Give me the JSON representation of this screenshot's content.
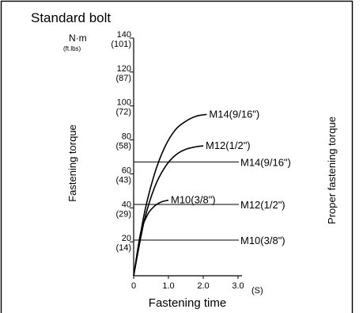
{
  "chart_data": {
    "type": "line",
    "title": "Standard bolt",
    "ylabel": "Fastening torque",
    "ylabel_right": "Proper fastening torque",
    "xlabel": "Fastening time",
    "x_unit": "(S)",
    "y_unit": "N·m",
    "y_unit_alt": "(ft.lbs)",
    "xlim": [
      0,
      3
    ],
    "ylim": [
      0,
      140
    ],
    "x_ticks": [
      {
        "value": 0,
        "label": "0"
      },
      {
        "value": 1,
        "label": "1.0"
      },
      {
        "value": 2,
        "label": "2.0"
      },
      {
        "value": 3,
        "label": "3.0"
      }
    ],
    "y_ticks": [
      {
        "value": 20,
        "label": "20",
        "alt": "(14)"
      },
      {
        "value": 40,
        "label": "40",
        "alt": "(29)"
      },
      {
        "value": 60,
        "label": "60",
        "alt": "(43)"
      },
      {
        "value": 80,
        "label": "80",
        "alt": "(58)"
      },
      {
        "value": 100,
        "label": "100",
        "alt": "(72)"
      },
      {
        "value": 120,
        "label": "120",
        "alt": "(87)"
      },
      {
        "value": 140,
        "label": "140",
        "alt": "(101)"
      }
    ],
    "series": [
      {
        "name": "M14(9/16\")",
        "x": [
          0,
          0.3,
          0.6,
          0.9,
          1.2,
          1.5,
          1.8,
          2.1
        ],
        "y": [
          0,
          36,
          60,
          76,
          86,
          91,
          94,
          95
        ]
      },
      {
        "name": "M12(1/2\")",
        "x": [
          0,
          0.3,
          0.6,
          0.9,
          1.2,
          1.5,
          1.8,
          2.0
        ],
        "y": [
          0,
          32,
          52,
          64,
          71,
          74.5,
          76,
          76.5
        ]
      },
      {
        "name": "M10(3/8\")",
        "x": [
          0,
          0.2,
          0.4,
          0.6,
          0.8,
          1.0
        ],
        "y": [
          0,
          25,
          36,
          41,
          43.5,
          44.5
        ]
      }
    ],
    "proper_torque_lines": [
      {
        "name": "M14(9/16\")",
        "y": 67
      },
      {
        "name": "M12(1/2\")",
        "y": 42
      },
      {
        "name": "M10(3/8\")",
        "y": 21
      }
    ]
  }
}
